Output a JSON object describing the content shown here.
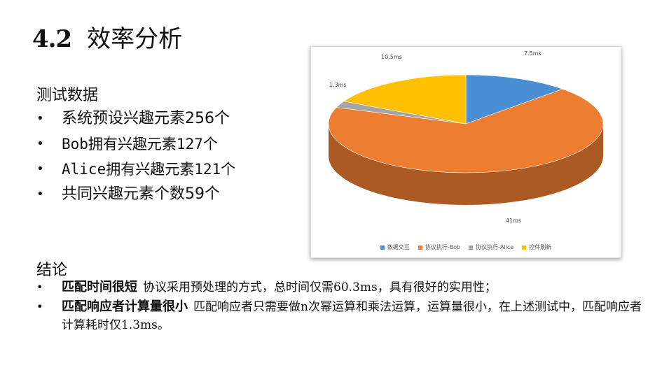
{
  "title": {
    "number": "4.2",
    "text": "效率分析"
  },
  "test_section": {
    "label": "测试数据",
    "items": [
      "系统预设兴趣元素256个",
      "Bob拥有兴趣元素127个",
      "Alice拥有兴趣元素121个",
      "共同兴趣元素个数59个"
    ]
  },
  "conclusion": {
    "label": "结论",
    "items": [
      {
        "bold": "匹配时间很短",
        "text": "协议采用预处理的方式，总时间仅需60.3ms，具有很好的实用性；"
      },
      {
        "bold": "匹配响应者计算量很小",
        "text": "匹配响应者只需要做n次幂运算和乘法运算，运算量很小，在上述测试中，匹配响应者计算耗时仅1.3ms。"
      }
    ]
  },
  "chart_data": {
    "type": "pie",
    "title": "",
    "slices": [
      {
        "name": "数据交互",
        "value": 7.5,
        "label": "7.5ms",
        "color": "#4a8fd6"
      },
      {
        "name": "协议执行-Bob",
        "value": 41,
        "label": "41ms",
        "color": "#ed7d31"
      },
      {
        "name": "协议执行-Alice",
        "value": 1.3,
        "label": "1.3ms",
        "color": "#a5a5a5"
      },
      {
        "name": "控件刷新",
        "value": 10.5,
        "label": "10.5ms",
        "color": "#ffc000"
      }
    ],
    "legend_position": "bottom",
    "style": "3d"
  }
}
